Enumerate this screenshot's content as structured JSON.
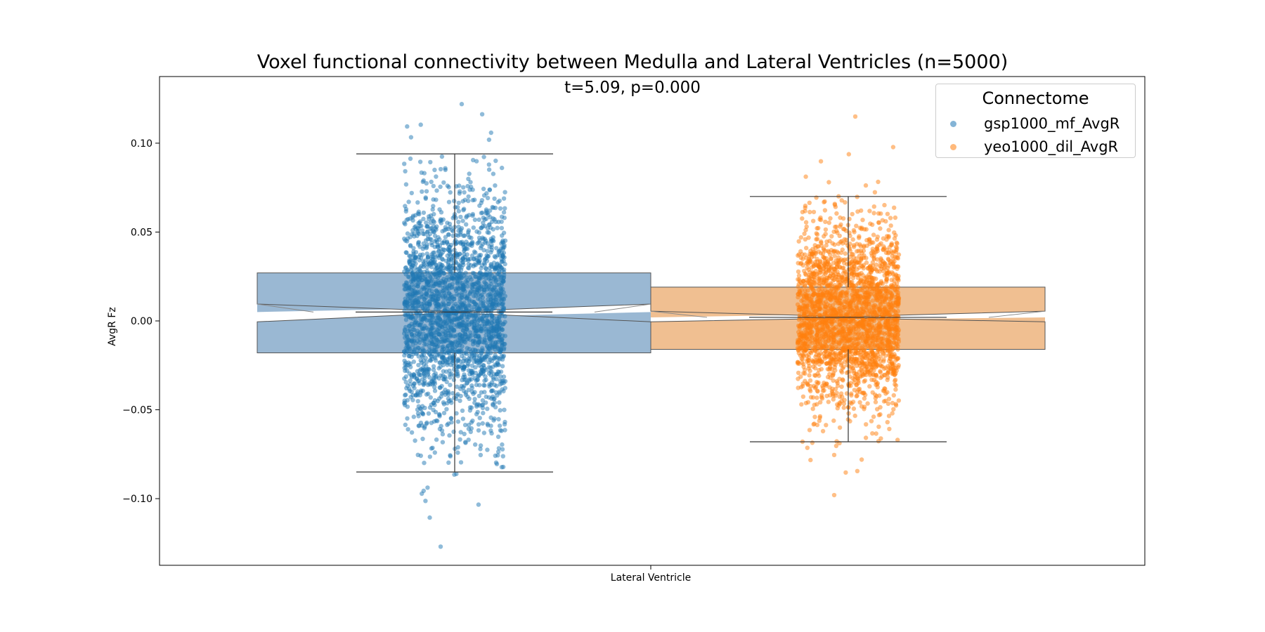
{
  "chart_data": {
    "type": "box",
    "title": "Voxel functional connectivity between Medulla and Lateral Ventricles (n=5000)",
    "subtitle": "t=5.09, p=0.000",
    "xlabel": "Lateral Ventricle",
    "ylabel": "AvgR Fz",
    "ylim": [
      -0.1375,
      0.1375
    ],
    "yticks": [
      0.1,
      0.05,
      0.0,
      -0.05,
      -0.1
    ],
    "ytick_labels": [
      "0.10",
      "0.05",
      "0.00",
      "−0.05",
      "−0.10"
    ],
    "categories": [
      "Lateral Ventricle"
    ],
    "legend": {
      "title": "Connectome",
      "position": "top-right"
    },
    "grid": false,
    "series": [
      {
        "name": "gsp1000_mf_AvgR",
        "color": "#1f77b4",
        "box_color": "#9ab8d3",
        "n": 5000,
        "stats": {
          "whisker_low": -0.085,
          "q1": -0.018,
          "median": 0.005,
          "q3": 0.027,
          "whisker_high": 0.094,
          "notch_low": 0.0055,
          "notch_high": 0.0045
        },
        "points_range": [
          -0.127,
          0.122
        ]
      },
      {
        "name": "yeo1000_dil_AvgR",
        "color": "#ff7f0e",
        "box_color": "#f0bf91",
        "n": 5000,
        "stats": {
          "whisker_low": -0.068,
          "q1": -0.016,
          "median": 0.002,
          "q3": 0.019,
          "whisker_high": 0.07,
          "notch_low": 0.0025,
          "notch_high": 0.0015
        },
        "points_range": [
          -0.098,
          0.115
        ]
      }
    ]
  }
}
